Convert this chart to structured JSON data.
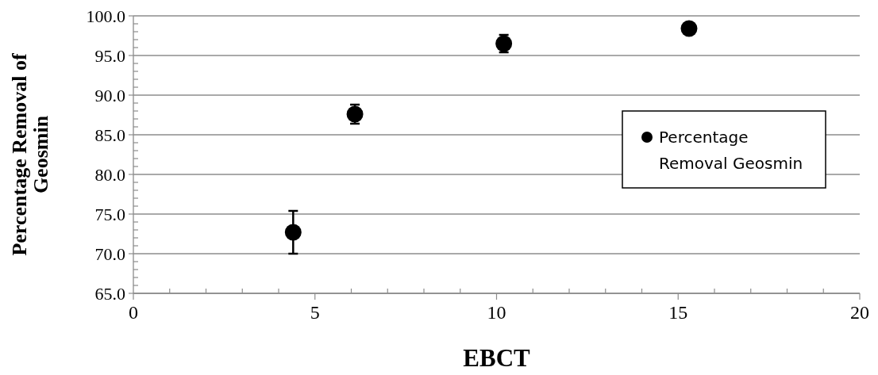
{
  "chart_data": {
    "type": "scatter",
    "xlabel": "EBCT",
    "ylabel": "Percentage Removal of\nGeosmin",
    "x": [
      4.4,
      6.1,
      10.2,
      15.3
    ],
    "series": [
      {
        "name": "Percentage Removal Geosmin",
        "color": "#000000",
        "values": [
          72.7,
          87.6,
          96.5,
          98.4
        ],
        "errors": [
          2.7,
          1.2,
          1.1,
          null
        ]
      }
    ],
    "xlim": [
      0,
      20
    ],
    "xticks": [
      0,
      {
        "value": 1,
        "label": null
      },
      {
        "value": 2,
        "label": null
      },
      {
        "value": 3,
        "label": null
      },
      {
        "value": 4,
        "label": null
      },
      5,
      {
        "value": 6,
        "label": null
      },
      {
        "value": 7,
        "label": null
      },
      {
        "value": 8,
        "label": null
      },
      {
        "value": 9,
        "label": null
      },
      10,
      {
        "value": 11,
        "label": null
      },
      {
        "value": 12,
        "label": null
      },
      {
        "value": 13,
        "label": null
      },
      {
        "value": 14,
        "label": null
      },
      15,
      {
        "value": 16,
        "label": null
      },
      {
        "value": 17,
        "label": null
      },
      {
        "value": 18,
        "label": null
      },
      {
        "value": 19,
        "label": null
      },
      20
    ],
    "ylim": [
      65,
      100
    ],
    "yticks": [
      {
        "value": 65,
        "label": "65.0"
      },
      {
        "value": 66,
        "label": null
      },
      {
        "value": 67,
        "label": null
      },
      {
        "value": 68,
        "label": null
      },
      {
        "value": 69,
        "label": null
      },
      {
        "value": 70,
        "label": "70.0"
      },
      {
        "value": 71,
        "label": null
      },
      {
        "value": 72,
        "label": null
      },
      {
        "value": 73,
        "label": null
      },
      {
        "value": 74,
        "label": null
      },
      {
        "value": 75,
        "label": "75.0"
      },
      {
        "value": 76,
        "label": null
      },
      {
        "value": 77,
        "label": null
      },
      {
        "value": 78,
        "label": null
      },
      {
        "value": 79,
        "label": null
      },
      {
        "value": 80,
        "label": "80.0"
      },
      {
        "value": 81,
        "label": null
      },
      {
        "value": 82,
        "label": null
      },
      {
        "value": 83,
        "label": null
      },
      {
        "value": 84,
        "label": null
      },
      {
        "value": 85,
        "label": "85.0"
      },
      {
        "value": 86,
        "label": null
      },
      {
        "value": 87,
        "label": null
      },
      {
        "value": 88,
        "label": null
      },
      {
        "value": 89,
        "label": null
      },
      {
        "value": 90,
        "label": "90.0"
      },
      {
        "value": 91,
        "label": null
      },
      {
        "value": 92,
        "label": null
      },
      {
        "value": 93,
        "label": null
      },
      {
        "value": 94,
        "label": null
      },
      {
        "value": 95,
        "label": "95.0"
      },
      {
        "value": 96,
        "label": null
      },
      {
        "value": 97,
        "label": null
      },
      {
        "value": 98,
        "label": null
      },
      {
        "value": 99,
        "label": null
      },
      {
        "value": 100,
        "label": "100.0"
      }
    ],
    "grid": "y",
    "legend": "right",
    "marker": "circle"
  }
}
